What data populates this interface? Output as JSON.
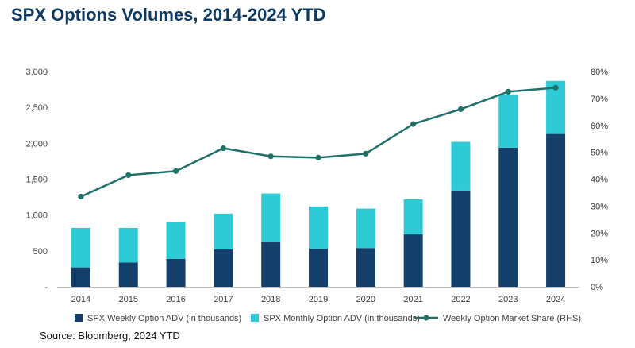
{
  "title": "SPX Options Volumes, 2014-2024 YTD",
  "source": "Source: Bloomberg, 2024 YTD",
  "colors": {
    "weekly": "#143f6b",
    "monthly": "#2ecbd6",
    "share": "#1f7069",
    "axis_text": "#404040",
    "axis_line": "#bfbfbf"
  },
  "chart_data": {
    "type": "bar",
    "stacked": true,
    "categories": [
      "2014",
      "2015",
      "2016",
      "2017",
      "2018",
      "2019",
      "2020",
      "2021",
      "2022",
      "2023",
      "2024"
    ],
    "series": [
      {
        "name": "SPX Weekly Option ADV (in thousands)",
        "type": "bar",
        "axis": "left",
        "values": [
          270,
          340,
          390,
          520,
          630,
          530,
          540,
          730,
          1340,
          1940,
          2130
        ]
      },
      {
        "name": "SPX Monthly Option ADV (in thousands)",
        "type": "bar",
        "axis": "left",
        "values": [
          550,
          480,
          510,
          500,
          670,
          590,
          550,
          490,
          680,
          740,
          740
        ]
      },
      {
        "name": "Weekly Option Market Share (RHS)",
        "type": "line",
        "axis": "right",
        "values": [
          33.5,
          41.5,
          43,
          51.5,
          48.5,
          48,
          49.5,
          60.5,
          66,
          72.5,
          74
        ]
      }
    ],
    "y_left": {
      "ylim": [
        0,
        3000
      ],
      "ticks": [
        0,
        500,
        1000,
        1500,
        2000,
        2500,
        3000
      ],
      "tick_labels": [
        "-",
        "500",
        "1,000",
        "1,500",
        "2,000",
        "2,500",
        "3,000"
      ]
    },
    "y_right": {
      "ylim": [
        0,
        80
      ],
      "ticks": [
        0,
        10,
        20,
        30,
        40,
        50,
        60,
        70,
        80
      ],
      "tick_labels": [
        "0%",
        "10%",
        "20%",
        "30%",
        "40%",
        "50%",
        "60%",
        "70%",
        "80%"
      ]
    },
    "legend_position": "bottom",
    "grid": false
  }
}
